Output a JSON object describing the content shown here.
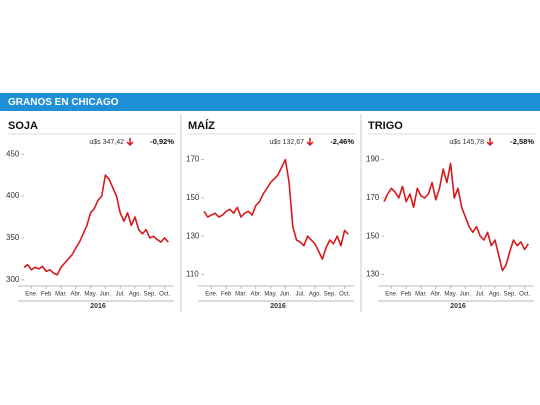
{
  "header": {
    "title": "GRANOS EN CHICAGO"
  },
  "chart_data": [
    {
      "type": "line",
      "title": "SOJA",
      "price": "u$s 347,42",
      "change": "-0,92%",
      "xlabel": "2016",
      "color": "#d7191c",
      "x": [
        0,
        0.25,
        0.5,
        0.75,
        1,
        1.25,
        1.5,
        1.75,
        2,
        2.25,
        2.5,
        2.75,
        3,
        3.25,
        3.5,
        3.75,
        4,
        4.25,
        4.5,
        4.75,
        5,
        5.25,
        5.5,
        5.75,
        6,
        6.25,
        6.5,
        6.75,
        7,
        7.25,
        7.5,
        7.75,
        8,
        8.25,
        8.5,
        8.75,
        9,
        9.25,
        9.5,
        9.75
      ],
      "values": [
        315,
        318,
        312,
        315,
        313,
        316,
        310,
        312,
        308,
        306,
        315,
        320,
        325,
        330,
        338,
        345,
        355,
        365,
        380,
        385,
        395,
        400,
        425,
        420,
        410,
        400,
        380,
        370,
        380,
        365,
        375,
        360,
        355,
        360,
        350,
        352,
        348,
        345,
        350,
        345
      ],
      "xlim": [
        0,
        10
      ],
      "ylim": [
        295,
        455
      ],
      "yticks": [
        300,
        350,
        400,
        450
      ],
      "xticks": [
        {
          "value": 0.5,
          "label": "Ene."
        },
        {
          "value": 1.5,
          "label": "Feb"
        },
        {
          "value": 2.5,
          "label": "Mar."
        },
        {
          "value": 3.5,
          "label": "Abr."
        },
        {
          "value": 4.5,
          "label": "May."
        },
        {
          "value": 5.5,
          "label": "Jun."
        },
        {
          "value": 6.5,
          "label": "Jul."
        },
        {
          "value": 7.5,
          "label": "Ago."
        },
        {
          "value": 8.5,
          "label": "Sep."
        },
        {
          "value": 9.5,
          "label": "Oct."
        }
      ]
    },
    {
      "type": "line",
      "title": "MAÍZ",
      "price": "u$s 132,67",
      "change": "-2,46%",
      "xlabel": "2016",
      "color": "#d7191c",
      "x": [
        0,
        0.25,
        0.5,
        0.75,
        1,
        1.25,
        1.5,
        1.75,
        2,
        2.25,
        2.5,
        2.75,
        3,
        3.25,
        3.5,
        3.75,
        4,
        4.25,
        4.5,
        4.75,
        5,
        5.25,
        5.5,
        5.75,
        6,
        6.25,
        6.5,
        6.75,
        7,
        7.25,
        7.5,
        7.75,
        8,
        8.25,
        8.5,
        8.75,
        9,
        9.25,
        9.5,
        9.75
      ],
      "values": [
        143,
        140,
        141,
        142,
        140,
        141,
        143,
        144,
        142,
        145,
        140,
        142,
        143,
        141,
        146,
        148,
        152,
        155,
        158,
        160,
        162,
        166,
        170,
        158,
        135,
        128,
        127,
        125,
        130,
        128,
        126,
        122,
        118,
        124,
        128,
        126,
        130,
        125,
        133,
        131
      ],
      "xlim": [
        0,
        10
      ],
      "ylim": [
        105,
        175
      ],
      "yticks": [
        110,
        130,
        150,
        170
      ],
      "xticks": [
        {
          "value": 0.5,
          "label": "Ene."
        },
        {
          "value": 1.5,
          "label": "Feb"
        },
        {
          "value": 2.5,
          "label": "Mar."
        },
        {
          "value": 3.5,
          "label": "Abr."
        },
        {
          "value": 4.5,
          "label": "May."
        },
        {
          "value": 5.5,
          "label": "Jun."
        },
        {
          "value": 6.5,
          "label": "Jul."
        },
        {
          "value": 7.5,
          "label": "Ago."
        },
        {
          "value": 8.5,
          "label": "Sep."
        },
        {
          "value": 9.5,
          "label": "Oct."
        }
      ]
    },
    {
      "type": "line",
      "title": "TRIGO",
      "price": "u$s 145,78",
      "change": "-2,58%",
      "xlabel": "2016",
      "color": "#d7191c",
      "x": [
        0,
        0.25,
        0.5,
        0.75,
        1,
        1.25,
        1.5,
        1.75,
        2,
        2.25,
        2.5,
        2.75,
        3,
        3.25,
        3.5,
        3.75,
        4,
        4.25,
        4.5,
        4.75,
        5,
        5.25,
        5.5,
        5.75,
        6,
        6.25,
        6.5,
        6.75,
        7,
        7.25,
        7.5,
        7.75,
        8,
        8.25,
        8.5,
        8.75,
        9,
        9.25,
        9.5,
        9.75
      ],
      "values": [
        168,
        172,
        175,
        173,
        170,
        176,
        168,
        172,
        165,
        175,
        171,
        170,
        172,
        178,
        169,
        175,
        185,
        178,
        188,
        170,
        175,
        165,
        160,
        155,
        152,
        155,
        150,
        148,
        152,
        145,
        148,
        140,
        132,
        135,
        142,
        148,
        145,
        147,
        143,
        146
      ],
      "xlim": [
        0,
        10
      ],
      "ylim": [
        125,
        195
      ],
      "yticks": [
        130,
        150,
        170,
        190
      ],
      "xticks": [
        {
          "value": 0.5,
          "label": "Ene."
        },
        {
          "value": 1.5,
          "label": "Feb"
        },
        {
          "value": 2.5,
          "label": "Mar."
        },
        {
          "value": 3.5,
          "label": "Abr."
        },
        {
          "value": 4.5,
          "label": "May."
        },
        {
          "value": 5.5,
          "label": "Jun."
        },
        {
          "value": 6.5,
          "label": "Jul."
        },
        {
          "value": 7.5,
          "label": "Ago."
        },
        {
          "value": 8.5,
          "label": "Sep."
        },
        {
          "value": 9.5,
          "label": "Oct."
        }
      ]
    }
  ]
}
